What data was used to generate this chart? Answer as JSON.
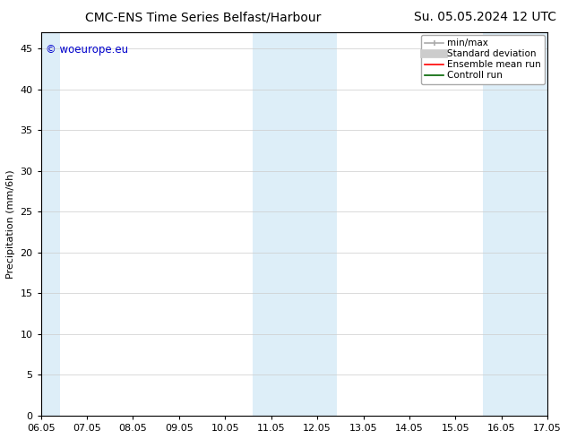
{
  "title_left": "CMC-ENS Time Series Belfast/Harbour",
  "title_right": "Su. 05.05.2024 12 UTC",
  "ylabel": "Precipitation (mm/6h)",
  "xlabel_ticks": [
    "06.05",
    "07.05",
    "08.05",
    "09.05",
    "10.05",
    "11.05",
    "12.05",
    "13.05",
    "14.05",
    "15.05",
    "16.05",
    "17.05"
  ],
  "yticks": [
    0,
    5,
    10,
    15,
    20,
    25,
    30,
    35,
    40,
    45
  ],
  "ylim": [
    0,
    47
  ],
  "xlim": [
    0,
    11
  ],
  "shaded_bands": [
    {
      "x_start": 0.0,
      "x_end": 0.42
    },
    {
      "x_start": 4.6,
      "x_end": 6.42
    },
    {
      "x_start": 9.6,
      "x_end": 11.0
    }
  ],
  "shade_color": "#ddeef8",
  "background_color": "#ffffff",
  "grid_color": "#cccccc",
  "copyright_text": "© woeurope.eu",
  "copyright_color": "#0000cc",
  "legend_items": [
    {
      "label": "min/max",
      "color": "#aaaaaa",
      "linestyle": "-",
      "linewidth": 1.2
    },
    {
      "label": "Standard deviation",
      "color": "#cccccc",
      "linestyle": "-",
      "linewidth": 7
    },
    {
      "label": "Ensemble mean run",
      "color": "#ff0000",
      "linestyle": "-",
      "linewidth": 1.2
    },
    {
      "label": "Controll run",
      "color": "#006400",
      "linestyle": "-",
      "linewidth": 1.2
    }
  ],
  "title_fontsize": 10,
  "axis_fontsize": 8,
  "tick_fontsize": 8,
  "copyright_fontsize": 8.5
}
